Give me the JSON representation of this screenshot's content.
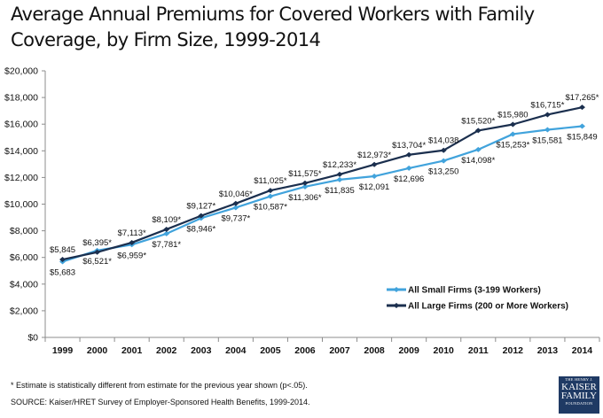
{
  "chart_data": {
    "type": "line",
    "title": "Average Annual Premiums for Covered Workers with Family Coverage, by Firm Size, 1999-2014",
    "xlabel": "",
    "ylabel": "",
    "ylim": [
      0,
      20000
    ],
    "yticks": [
      0,
      2000,
      4000,
      6000,
      8000,
      10000,
      12000,
      14000,
      16000,
      18000,
      20000
    ],
    "ytick_labels": [
      "$0",
      "$2,000",
      "$4,000",
      "$6,000",
      "$8,000",
      "$10,000",
      "$12,000",
      "$14,000",
      "$16,000",
      "$18,000",
      "$20,000"
    ],
    "categories": [
      "1999",
      "2000",
      "2001",
      "2002",
      "2003",
      "2004",
      "2005",
      "2006",
      "2007",
      "2008",
      "2009",
      "2010",
      "2011",
      "2012",
      "2013",
      "2014"
    ],
    "grid": false,
    "legend_position": "bottom-right",
    "series": [
      {
        "name": "All Small Firms (3-199 Workers)",
        "color": "#41a3dc",
        "values": [
          5683,
          6521,
          6959,
          7781,
          8946,
          9737,
          10587,
          11306,
          11835,
          12091,
          12696,
          13250,
          14098,
          15253,
          15581,
          15849
        ],
        "labels": [
          "$5,683",
          "$6,521*",
          "$6,959*",
          "$7,781*",
          "$8,946*",
          "$9,737*",
          "$10,587*",
          "$11,306*",
          "$11,835",
          "$12,091",
          "$12,696",
          "$13,250",
          "$14,098*",
          "$15,253*",
          "$15,581",
          "$15,849"
        ],
        "label_position": "below"
      },
      {
        "name": "All Large Firms (200 or More Workers)",
        "color": "#1b2f4e",
        "values": [
          5845,
          6395,
          7113,
          8109,
          9127,
          10046,
          11025,
          11575,
          12233,
          12973,
          13704,
          14038,
          15520,
          15980,
          16715,
          17265
        ],
        "labels": [
          "$5,845",
          "$6,395*",
          "$7,113*",
          "$8,109*",
          "$9,127*",
          "$10,046*",
          "$11,025*",
          "$11,575*",
          "$12,233*",
          "$12,973*",
          "$13,704*",
          "$14,038",
          "$15,520*",
          "$15,980",
          "$16,715*",
          "$17,265*"
        ],
        "label_position": "above"
      }
    ]
  },
  "footnotes": {
    "asterisk": "* Estimate is statistically different from estimate for the previous year shown (p<.05).",
    "source": "SOURCE:  Kaiser/HRET Survey of Employer-Sponsored Health Benefits, 1999-2014."
  },
  "logo": {
    "line1": "THE HENRY J.",
    "line2": "KAISER",
    "line3": "FAMILY",
    "line4": "FOUNDATION"
  }
}
